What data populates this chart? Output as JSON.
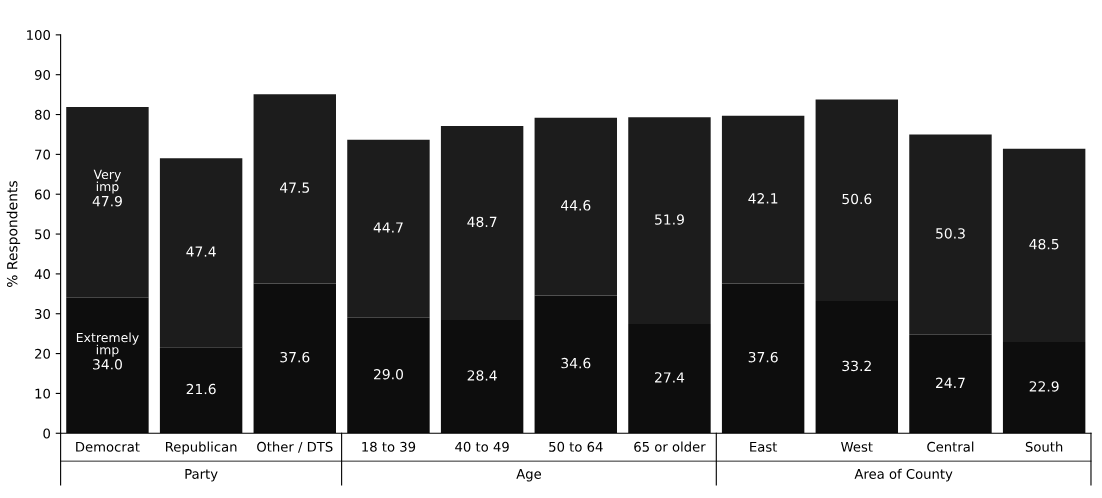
{
  "chart_data": {
    "type": "bar",
    "ylabel": "% Respondents",
    "categories": [
      "Democrat",
      "Republican",
      "Other / DTS",
      "18 to 39",
      "40 to 49",
      "50 to 64",
      "65 or older",
      "East",
      "West",
      "Central",
      "South"
    ],
    "series": [
      {
        "name": "Extremely imp",
        "color": "#0d0d0d",
        "values": [
          34.0,
          21.6,
          37.6,
          29.0,
          28.4,
          34.6,
          27.4,
          37.6,
          33.2,
          24.7,
          22.9
        ],
        "value_labels": [
          "34.0",
          "21.6",
          "37.6",
          "29.0",
          "28.4",
          "34.6",
          "27.4",
          "37.6",
          "33.2",
          "24.7",
          "22.9"
        ]
      },
      {
        "name": "Very imp",
        "color": "#1c1c1c",
        "values": [
          47.9,
          47.4,
          47.5,
          44.7,
          48.7,
          44.6,
          51.9,
          42.1,
          50.6,
          50.3,
          48.5
        ],
        "value_labels": [
          "47.9",
          "47.4",
          "47.5",
          "44.7",
          "48.7",
          "44.6",
          "51.9",
          "42.1",
          "50.6",
          "50.3",
          "48.5"
        ]
      }
    ],
    "stacked": true,
    "ylim": [
      0,
      100
    ],
    "yticks": [
      0,
      10,
      20,
      30,
      40,
      50,
      60,
      70,
      80,
      90,
      100
    ],
    "annotations": [
      "Party",
      "Age",
      "Area of County"
    ]
  }
}
